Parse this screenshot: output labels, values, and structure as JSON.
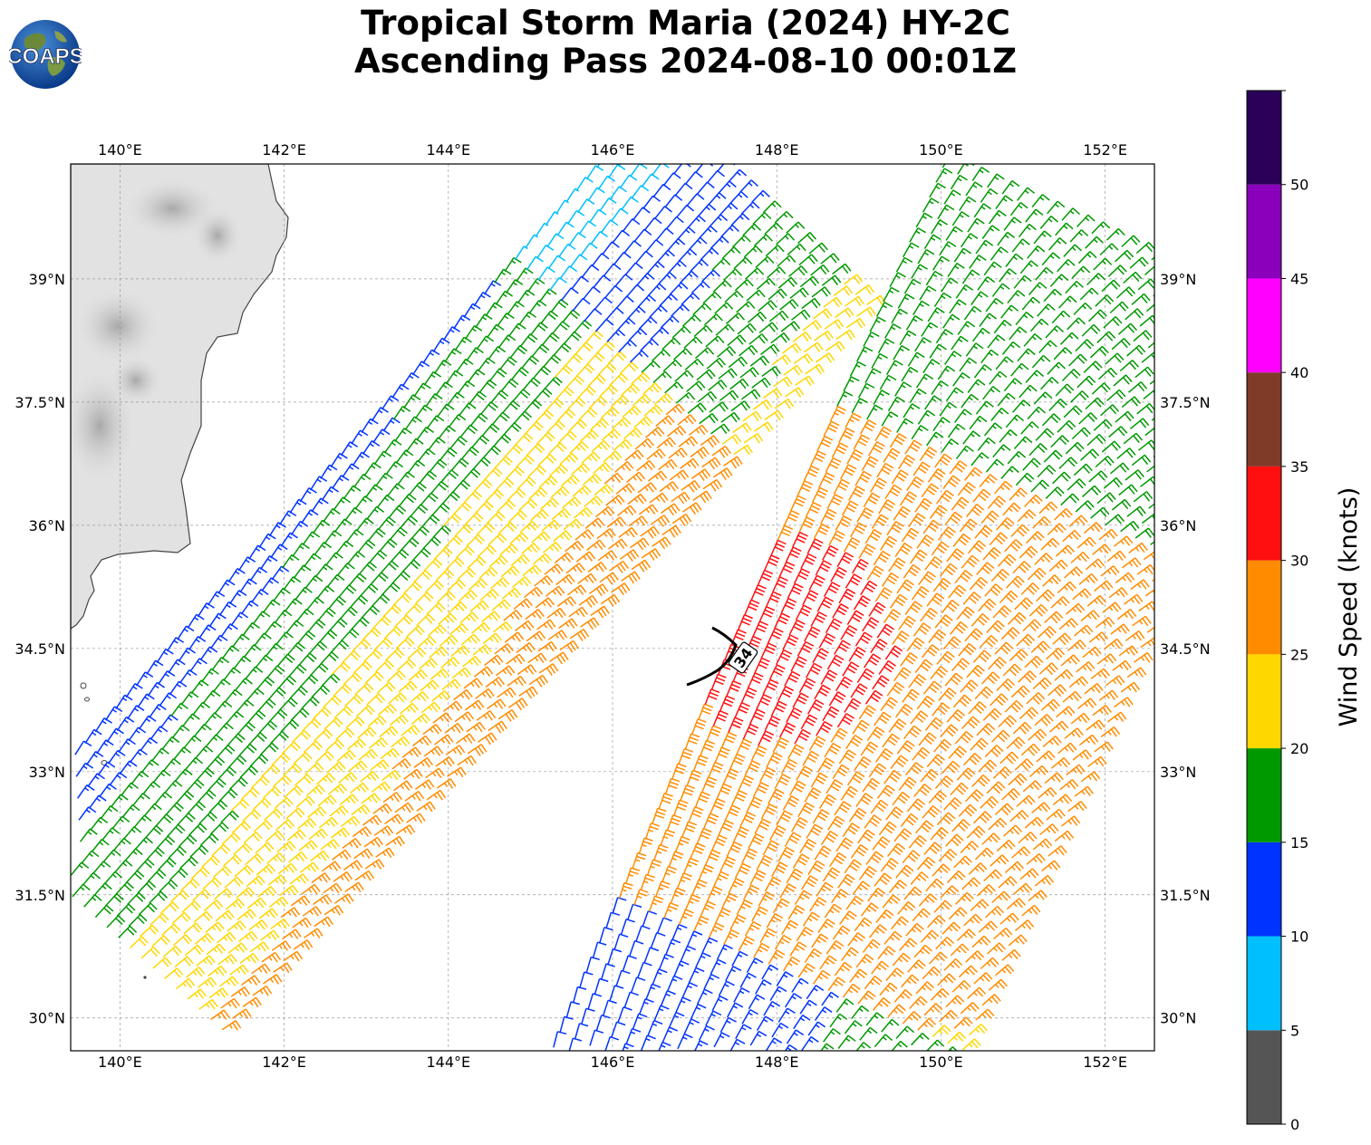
{
  "header": {
    "title_line_1": "Tropical Storm Maria (2024) HY-2C",
    "title_line_2": "Ascending Pass 2024-08-10 00:01Z",
    "logo_text": "COAPS"
  },
  "map": {
    "lon_ticks": [
      "140°E",
      "142°E",
      "144°E",
      "146°E",
      "148°E",
      "150°E",
      "152°E"
    ],
    "lat_ticks": [
      "39°N",
      "37.5°N",
      "36°N",
      "34.5°N",
      "33°N",
      "31.5°N",
      "30°N"
    ],
    "lon_range": [
      139.4,
      152.6
    ],
    "lat_range": [
      29.6,
      40.4
    ],
    "gridlines": true,
    "land_color": "#d8d8d8",
    "ocean_color": "#ffffff",
    "contour_label": "34",
    "contour_color": "#000000"
  },
  "colorbar": {
    "label": "Wind Speed (knots)",
    "tick_labels": [
      "0",
      "5",
      "10",
      "15",
      "20",
      "25",
      "30",
      "35",
      "40",
      "45",
      "50"
    ],
    "bins": [
      {
        "min": 0,
        "max": 5,
        "color": "#555555"
      },
      {
        "min": 5,
        "max": 10,
        "color": "#00bfff"
      },
      {
        "min": 10,
        "max": 15,
        "color": "#0033ff"
      },
      {
        "min": 15,
        "max": 20,
        "color": "#009900"
      },
      {
        "min": 20,
        "max": 25,
        "color": "#ffd700"
      },
      {
        "min": 25,
        "max": 30,
        "color": "#ff8c00"
      },
      {
        "min": 30,
        "max": 35,
        "color": "#ff0f0f"
      },
      {
        "min": 35,
        "max": 40,
        "color": "#7f3b28"
      },
      {
        "min": 40,
        "max": 45,
        "color": "#ff00ff"
      },
      {
        "min": 45,
        "max": 50,
        "color": "#8b00bb"
      },
      {
        "min": 50,
        "max": 55,
        "color": "#2b0059"
      }
    ]
  }
}
